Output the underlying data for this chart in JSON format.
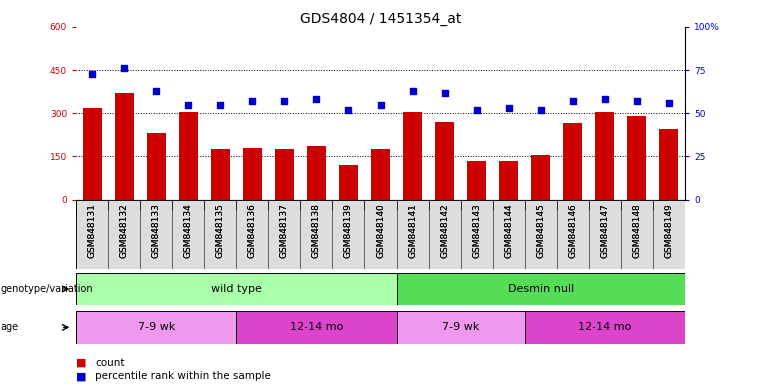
{
  "title": "GDS4804 / 1451354_at",
  "samples": [
    "GSM848131",
    "GSM848132",
    "GSM848133",
    "GSM848134",
    "GSM848135",
    "GSM848136",
    "GSM848137",
    "GSM848138",
    "GSM848139",
    "GSM848140",
    "GSM848141",
    "GSM848142",
    "GSM848143",
    "GSM848144",
    "GSM848145",
    "GSM848146",
    "GSM848147",
    "GSM848148",
    "GSM848149"
  ],
  "counts": [
    320,
    370,
    230,
    305,
    175,
    180,
    175,
    185,
    120,
    175,
    305,
    270,
    135,
    135,
    155,
    265,
    305,
    290,
    245
  ],
  "percentiles": [
    73,
    76,
    63,
    55,
    55,
    57,
    57,
    58,
    52,
    55,
    63,
    62,
    52,
    53,
    52,
    57,
    58,
    57,
    56
  ],
  "ylim_left": [
    0,
    600
  ],
  "ylim_right": [
    0,
    100
  ],
  "yticks_left": [
    0,
    150,
    300,
    450,
    600
  ],
  "yticks_right": [
    0,
    25,
    50,
    75,
    100
  ],
  "bar_color": "#cc0000",
  "dot_color": "#0000cc",
  "background_color": "#ffffff",
  "genotype_groups": [
    {
      "label": "wild type",
      "start": 0,
      "end": 10,
      "color": "#aaffaa"
    },
    {
      "label": "Desmin null",
      "start": 10,
      "end": 19,
      "color": "#55dd55"
    }
  ],
  "age_groups": [
    {
      "label": "7-9 wk",
      "start": 0,
      "end": 5,
      "color": "#ee99ee"
    },
    {
      "label": "12-14 mo",
      "start": 5,
      "end": 10,
      "color": "#dd44cc"
    },
    {
      "label": "7-9 wk",
      "start": 10,
      "end": 14,
      "color": "#ee99ee"
    },
    {
      "label": "12-14 mo",
      "start": 14,
      "end": 19,
      "color": "#dd44cc"
    }
  ],
  "legend_count_label": "count",
  "legend_pct_label": "percentile rank within the sample",
  "genotype_label": "genotype/variation",
  "age_label": "age",
  "title_fontsize": 10,
  "tick_fontsize": 6.5,
  "bar_fontsize": 8
}
